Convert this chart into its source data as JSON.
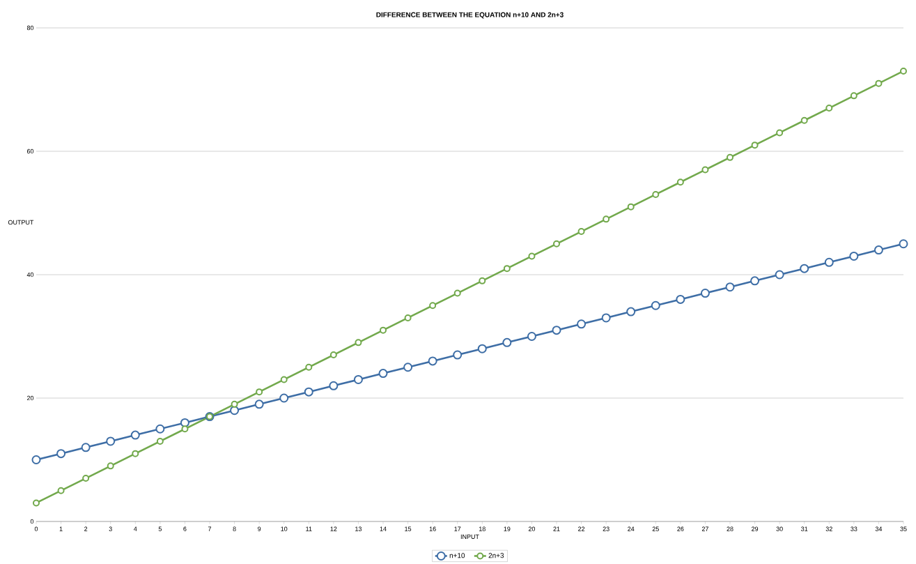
{
  "chart_data": {
    "type": "line",
    "title": "DIFFERENCE BETWEEN THE EQUATION n+10 AND 2n+3",
    "xlabel": "INPUT",
    "ylabel": "OUTPUT",
    "x": [
      0,
      1,
      2,
      3,
      4,
      5,
      6,
      7,
      8,
      9,
      10,
      11,
      12,
      13,
      14,
      15,
      16,
      17,
      18,
      19,
      20,
      21,
      22,
      23,
      24,
      25,
      26,
      27,
      28,
      29,
      30,
      31,
      32,
      33,
      34,
      35
    ],
    "xlim": [
      0,
      35
    ],
    "xticks": [
      0,
      1,
      2,
      3,
      4,
      5,
      6,
      7,
      8,
      9,
      10,
      11,
      12,
      13,
      14,
      15,
      16,
      17,
      18,
      19,
      20,
      21,
      22,
      23,
      24,
      25,
      26,
      27,
      28,
      29,
      30,
      31,
      32,
      33,
      34,
      35
    ],
    "ylim": [
      0,
      80
    ],
    "yticks": [
      0,
      20,
      40,
      60,
      80
    ],
    "series": [
      {
        "name": "n+10",
        "color": "#3e6ea6",
        "values": [
          10,
          11,
          12,
          13,
          14,
          15,
          16,
          17,
          18,
          19,
          20,
          21,
          22,
          23,
          24,
          25,
          26,
          27,
          28,
          29,
          30,
          31,
          32,
          33,
          34,
          35,
          36,
          37,
          38,
          39,
          40,
          41,
          42,
          43,
          44,
          45
        ]
      },
      {
        "name": "2n+3",
        "color": "#72a94c",
        "values": [
          3,
          5,
          7,
          9,
          11,
          13,
          15,
          17,
          19,
          21,
          23,
          25,
          27,
          29,
          31,
          33,
          35,
          37,
          39,
          41,
          43,
          45,
          47,
          49,
          51,
          53,
          55,
          57,
          59,
          61,
          63,
          65,
          67,
          69,
          71,
          73
        ]
      }
    ],
    "grid": "y",
    "legend": "bottom",
    "marker": "circle",
    "line_style": "solid"
  }
}
